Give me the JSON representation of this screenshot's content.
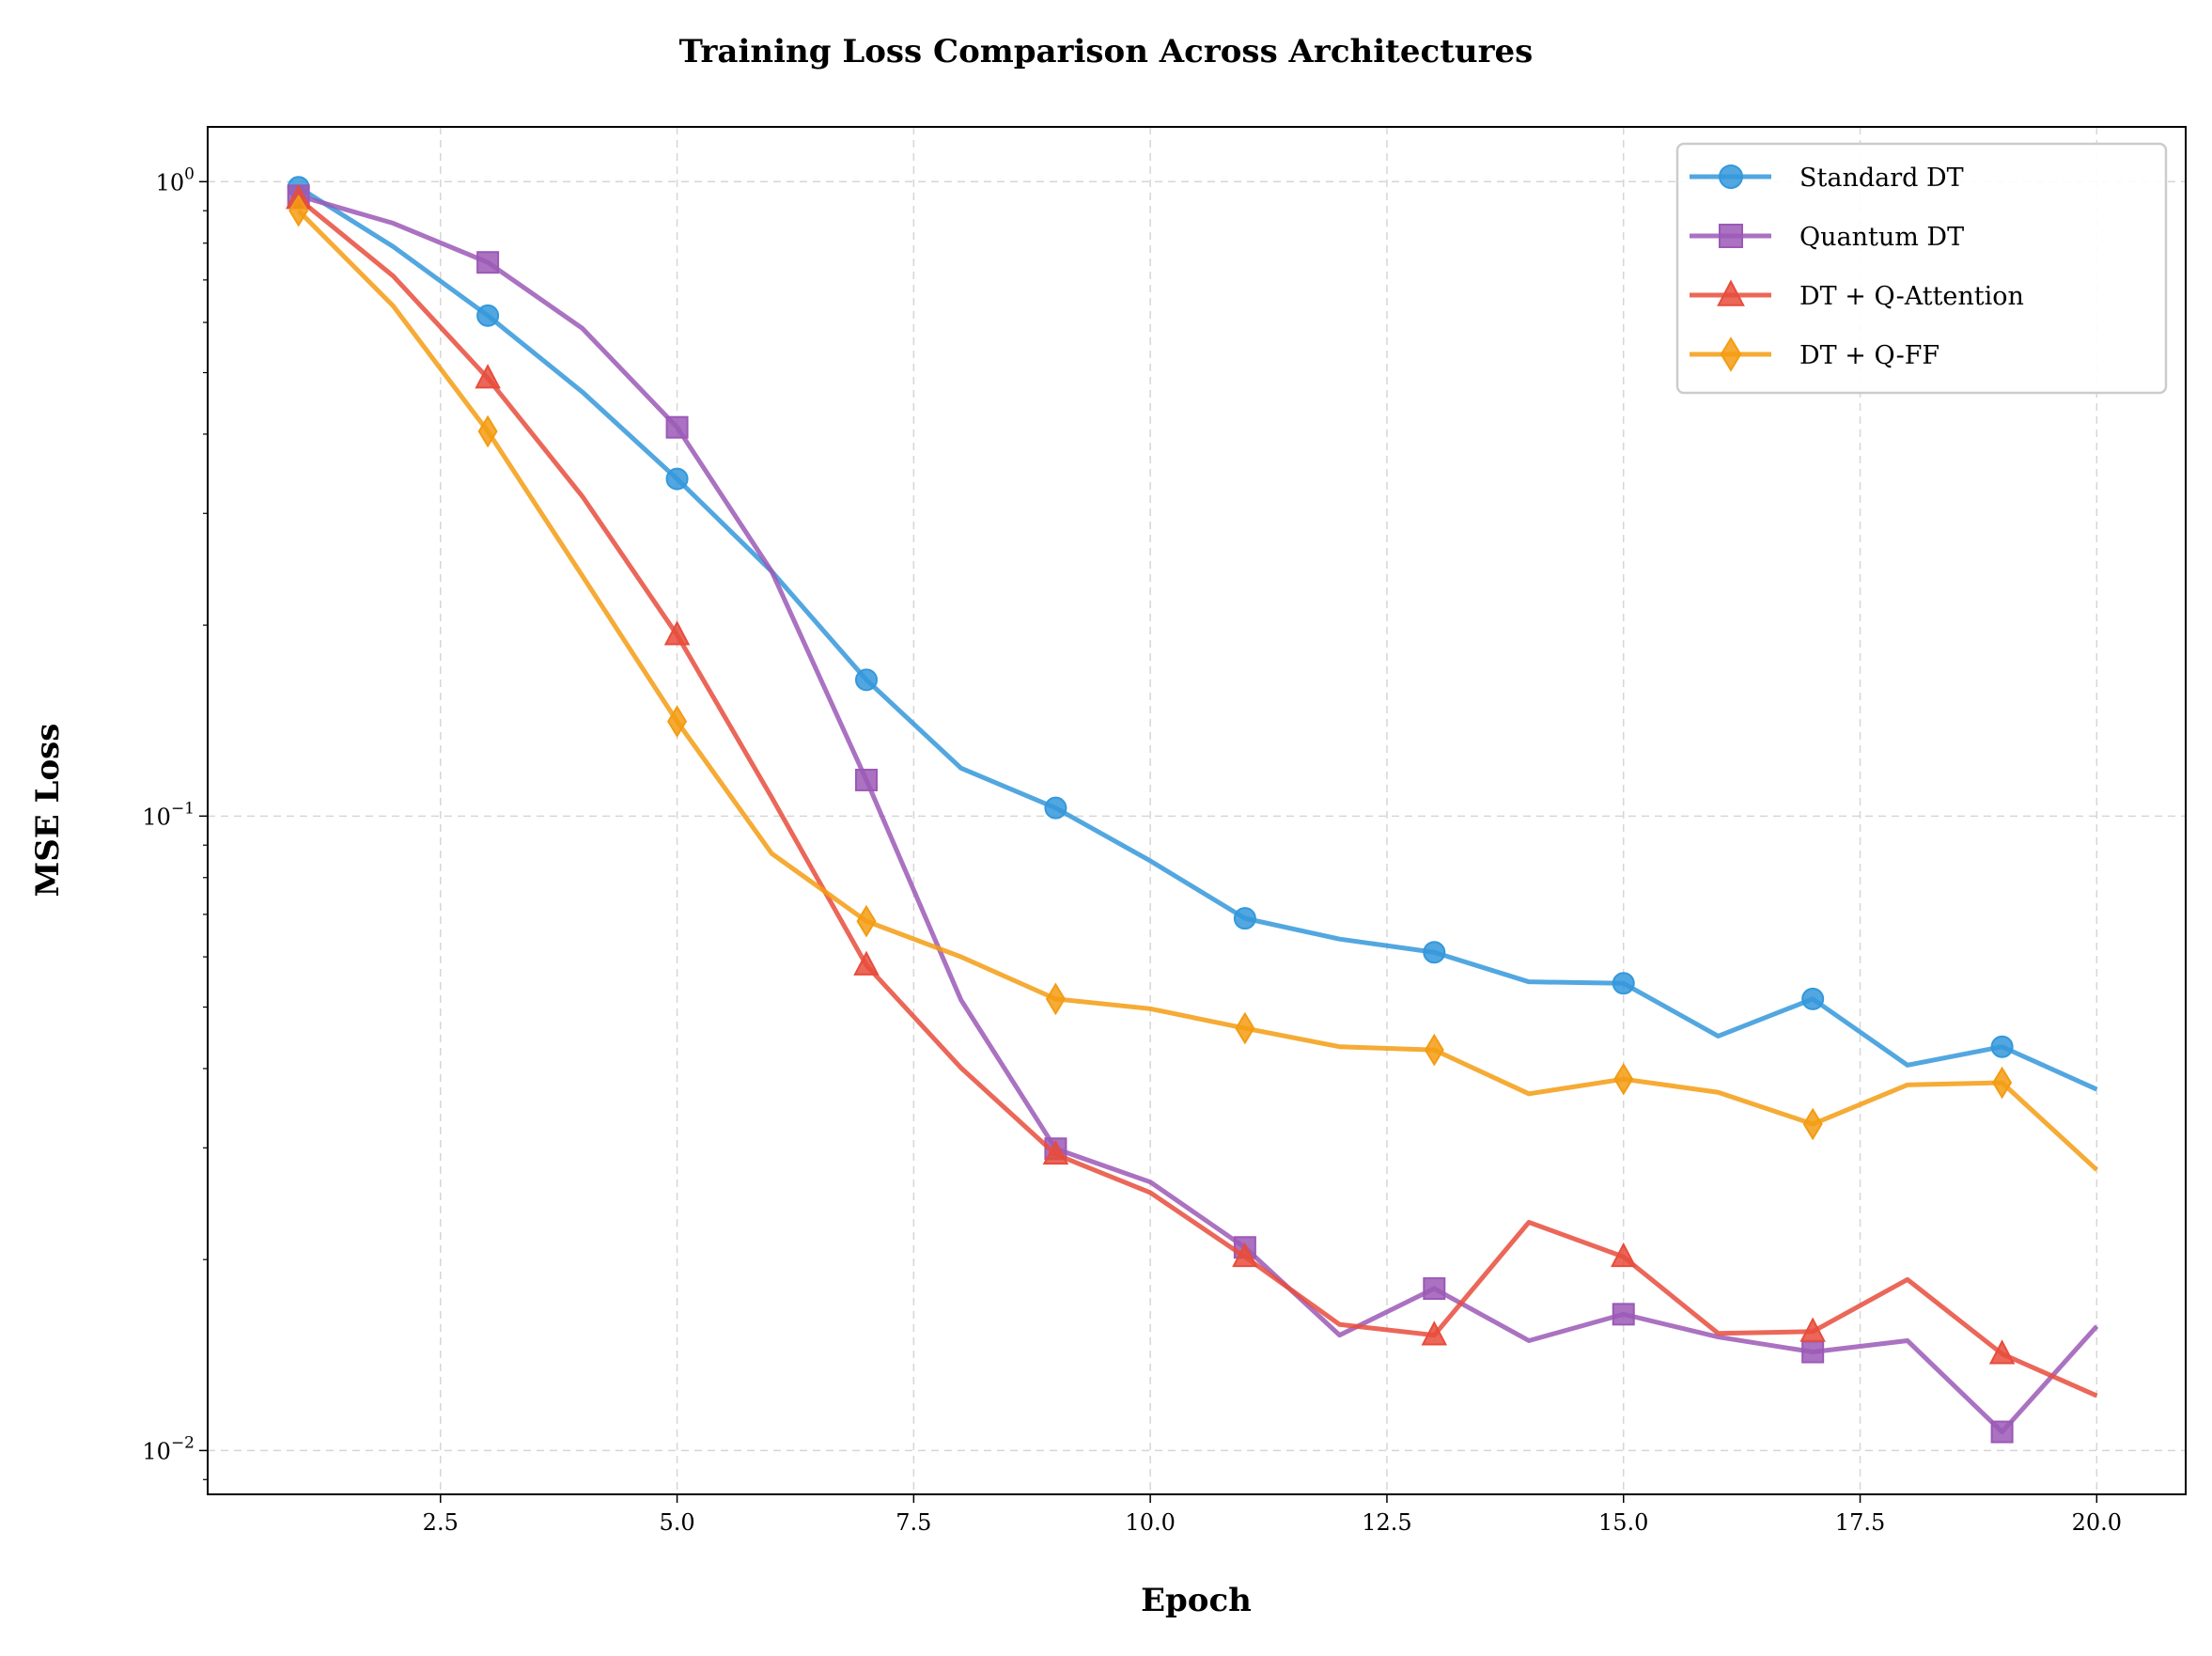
{
  "chart_data": {
    "type": "line",
    "title": "Training Loss Comparison Across Architectures",
    "xlabel": "Epoch",
    "ylabel": "MSE Loss",
    "yscale": "log",
    "xlim": [
      0.04,
      20.94
    ],
    "ylim": [
      0.00853,
      1.22
    ],
    "grid": true,
    "legend_position": "top-right",
    "x_ticks": [
      "2.5",
      "5.0",
      "7.5",
      "10.0",
      "12.5",
      "15.0",
      "17.5",
      "20.0"
    ],
    "x_tick_values": [
      2.5,
      5,
      7.5,
      10,
      12.5,
      15,
      17.5,
      20
    ],
    "y_ticks": [
      {
        "value": 1,
        "base": "10",
        "exp": "0"
      },
      {
        "value": 0.1,
        "base": "10",
        "exp": "−1"
      },
      {
        "value": 0.01,
        "base": "10",
        "exp": "−2"
      }
    ],
    "x": [
      1,
      2,
      3,
      4,
      5,
      6,
      7,
      8,
      9,
      10,
      11,
      12,
      13,
      14,
      15,
      16,
      17,
      18,
      19,
      20
    ],
    "series": [
      {
        "name": "Standard DT",
        "color": "#3498db",
        "marker": "circle",
        "marker_every": "odd epochs",
        "values": [
          0.98,
          0.79,
          0.615,
          0.466,
          0.34,
          0.243,
          0.164,
          0.119,
          0.103,
          0.085,
          0.069,
          0.064,
          0.061,
          0.0548,
          0.0545,
          0.045,
          0.0515,
          0.0405,
          0.0433,
          0.0371
        ]
      },
      {
        "name": "Quantum DT",
        "color": "#9b59b6",
        "marker": "square",
        "marker_every": "odd epochs",
        "values": [
          0.95,
          0.86,
          0.746,
          0.587,
          0.41,
          0.243,
          0.114,
          0.0513,
          0.0299,
          0.0265,
          0.0209,
          0.0152,
          0.018,
          0.0149,
          0.0164,
          0.0151,
          0.0143,
          0.0149,
          0.0107,
          0.0157
        ]
      },
      {
        "name": "DT + Q-Attention",
        "color": "#e74c3c",
        "marker": "triangle",
        "marker_every": "odd epochs",
        "values": [
          0.94,
          0.71,
          0.49,
          0.319,
          0.193,
          0.107,
          0.0582,
          0.0401,
          0.0293,
          0.0255,
          0.0202,
          0.0158,
          0.0152,
          0.0229,
          0.0202,
          0.0153,
          0.0154,
          0.0186,
          0.0142,
          0.0122
        ]
      },
      {
        "name": "DT + Q-FF",
        "color": "#f39c12",
        "marker": "diamond",
        "marker_every": "odd epochs",
        "values": [
          0.9,
          0.637,
          0.404,
          0.239,
          0.141,
          0.0873,
          0.0683,
          0.06,
          0.0515,
          0.0497,
          0.0463,
          0.0433,
          0.0428,
          0.0365,
          0.0385,
          0.0367,
          0.0327,
          0.0377,
          0.038,
          0.0277
        ]
      }
    ]
  }
}
